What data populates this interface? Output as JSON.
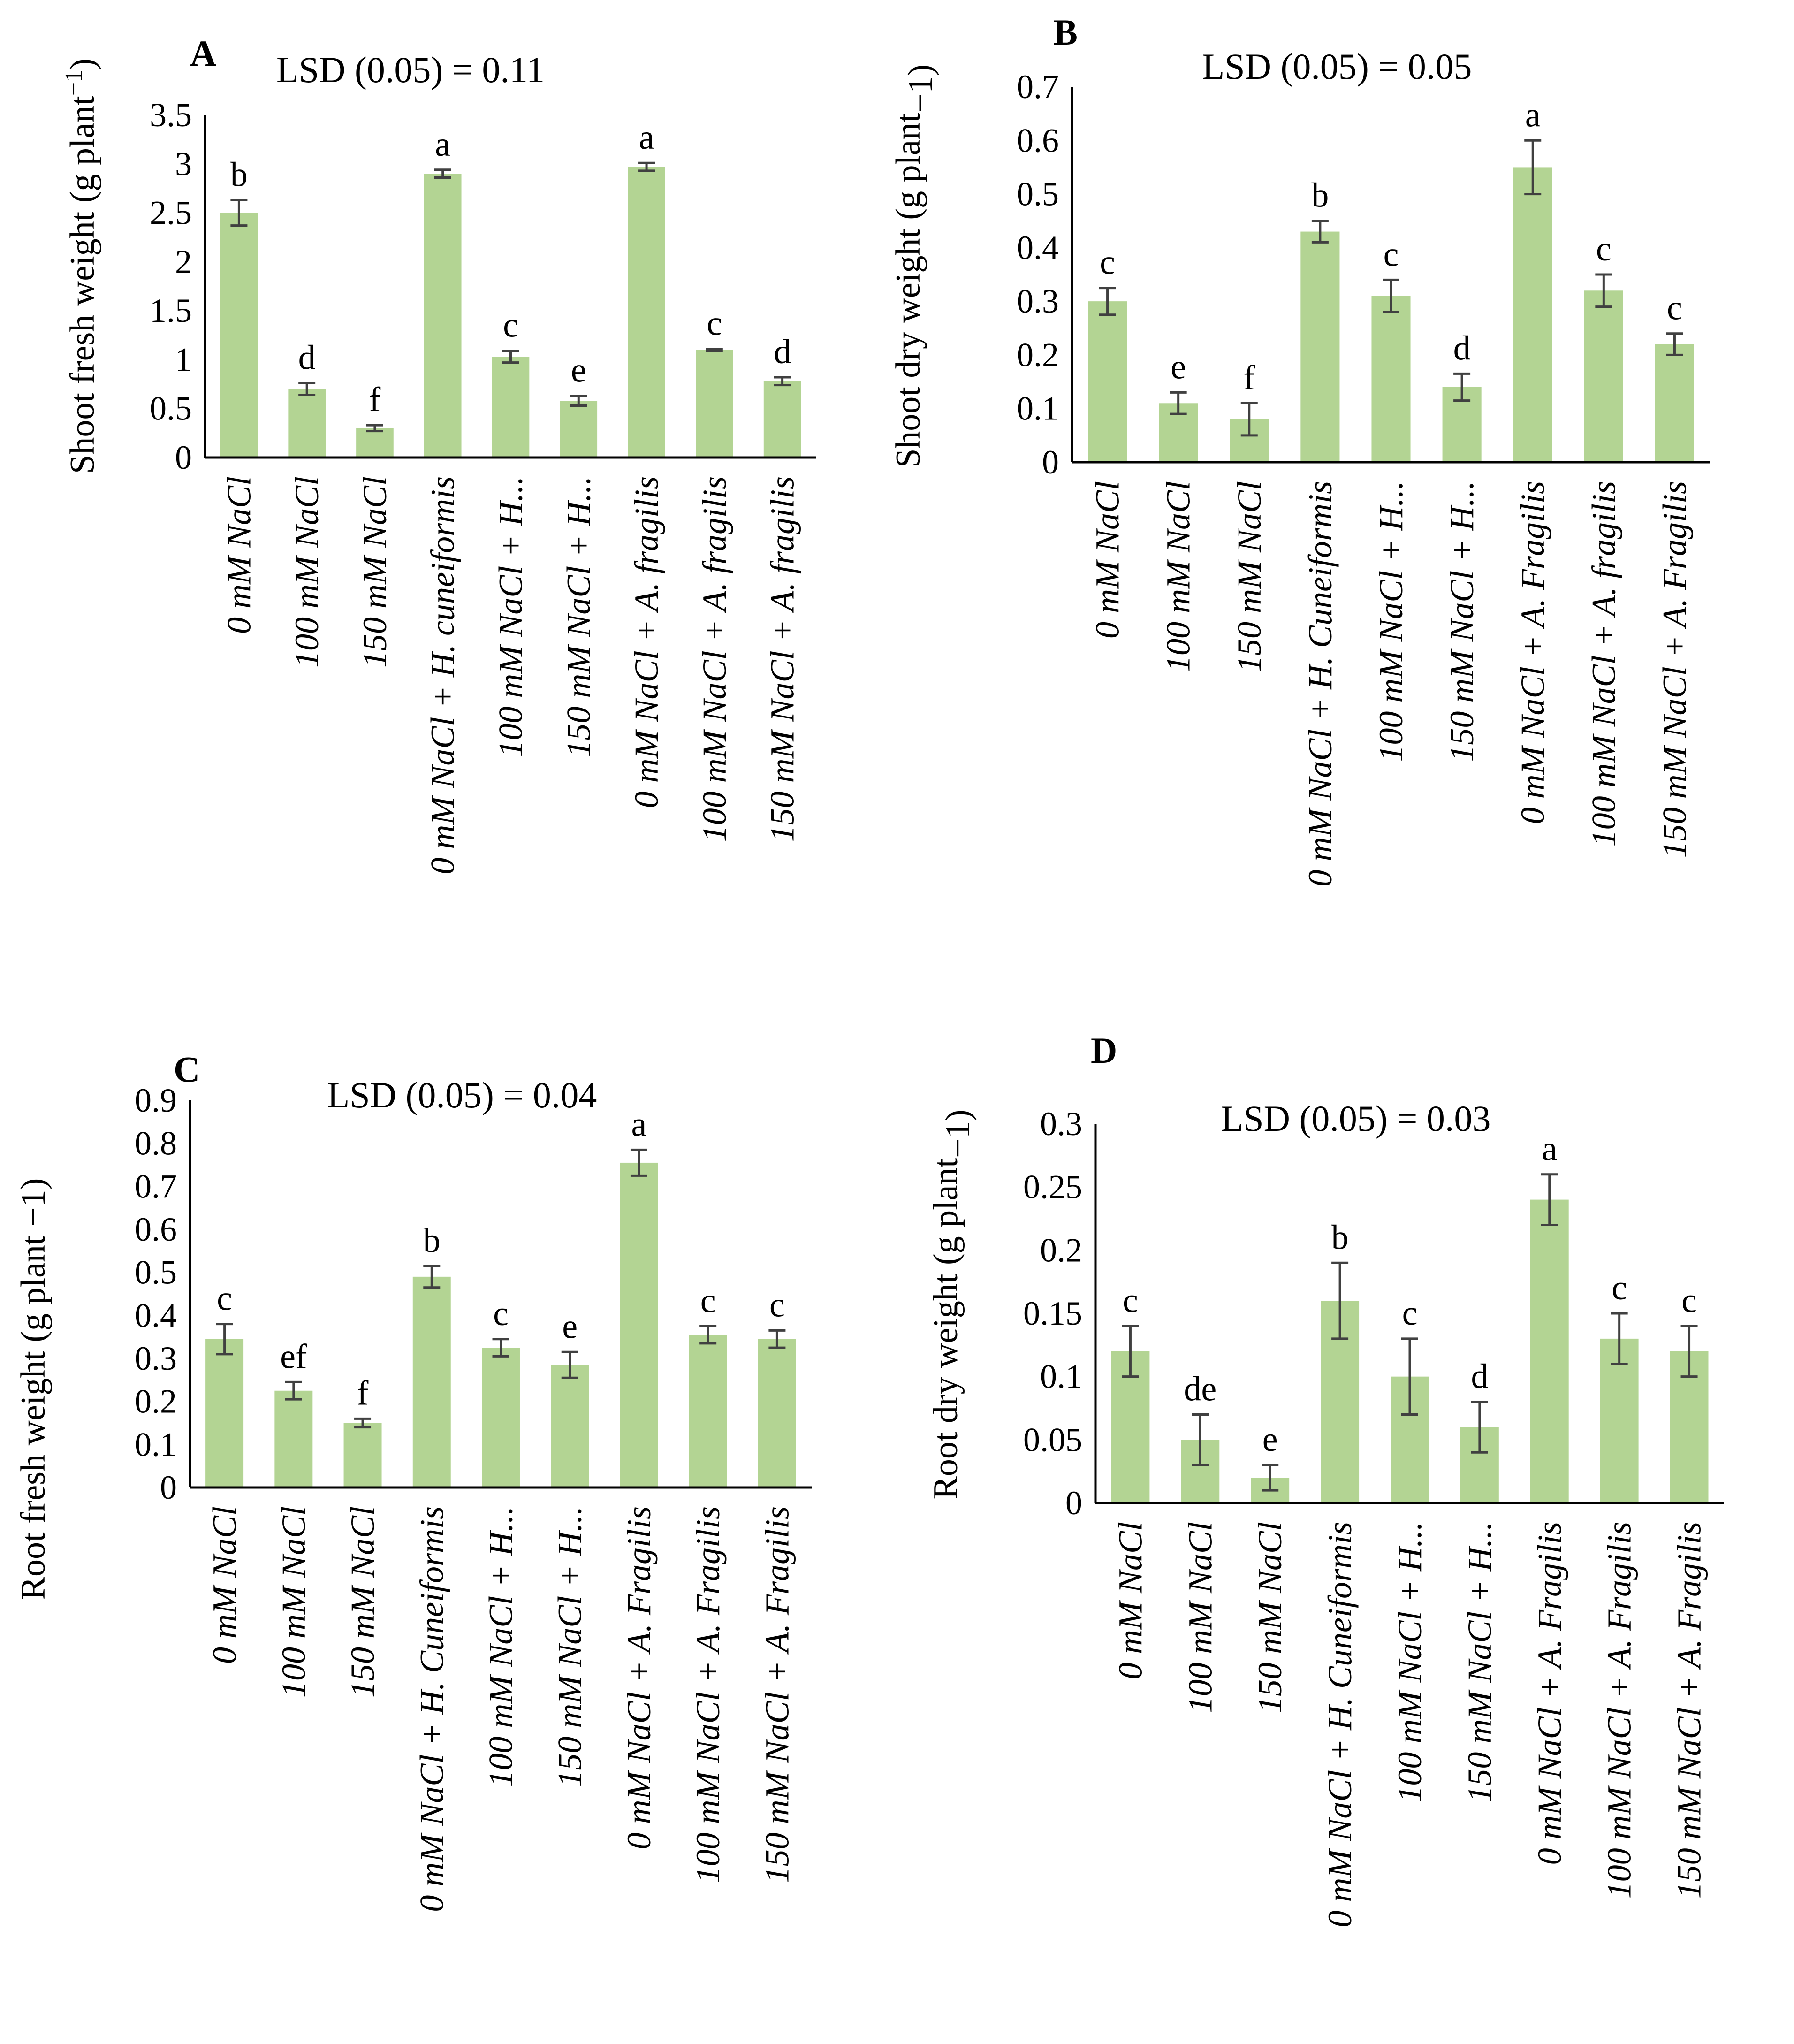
{
  "colors": {
    "bar": "#b3d493",
    "error_bar": "#404040",
    "axis": "#000000"
  },
  "chart_data": [
    {
      "type": "bar",
      "panel": "A",
      "title": "LSD (0.05) = 0.11",
      "ylabel": "Shoot fresh weight (g plant",
      "ylabel_sup": "−1",
      "ylabel_end": ")",
      "ylim": [
        0,
        3.5
      ],
      "yticks": [
        "0",
        "0.5",
        "1",
        "1.5",
        "2",
        "2.5",
        "3",
        "3.5"
      ],
      "categories": [
        "0 mM NaCl",
        "100 mM NaCl",
        "150 mM NaCl",
        "0 mM NaCl + H. cuneiformis",
        "100 mM NaCl + H...",
        "150 mM NaCl + H...",
        "0 mM NaCl + A. fragilis",
        "100 mM NaCl + A. fragilis",
        "150 mM NaCl + A. fragilis"
      ],
      "values": [
        2.5,
        0.7,
        0.3,
        2.9,
        1.03,
        0.58,
        2.97,
        1.1,
        0.78
      ],
      "errors": [
        0.13,
        0.06,
        0.03,
        0.04,
        0.06,
        0.05,
        0.04,
        0.01,
        0.04
      ],
      "letters": [
        "b",
        "d",
        "f",
        "a",
        "c",
        "e",
        "a",
        "c",
        "d"
      ]
    },
    {
      "type": "bar",
      "panel": "B",
      "title": "LSD (0.05) = 0.05",
      "ylabel": "Shoot  dry weight (g plant",
      "ylabel_sup": "",
      "ylabel_end": "−1)",
      "ylim": [
        0,
        0.7
      ],
      "yticks": [
        "0",
        "0.1",
        "0.2",
        "0.3",
        "0.4",
        "0.5",
        "0.6",
        "0.7"
      ],
      "categories": [
        "0 mM NaCl",
        "100 mM NaCl",
        "150 mM NaCl",
        "0 mM NaCl + H. Cuneiformis",
        "100 mM NaCl + H...",
        "150 mM NaCl + H...",
        "0 mM NaCl + A. Fragilis",
        "100 mM NaCl + A. fragilis",
        "150 mM NaCl + A. Fragilis"
      ],
      "values": [
        0.3,
        0.11,
        0.08,
        0.43,
        0.31,
        0.14,
        0.55,
        0.32,
        0.22
      ],
      "errors": [
        0.025,
        0.02,
        0.03,
        0.02,
        0.03,
        0.025,
        0.05,
        0.03,
        0.02
      ],
      "letters": [
        "c",
        "e",
        "f",
        "b",
        "c",
        "d",
        "a",
        "c",
        "c"
      ]
    },
    {
      "type": "bar",
      "panel": "C",
      "title": "LSD (0.05) = 0.04",
      "ylabel": "Root fresh weight (g plant −1)",
      "ylabel_sup": "",
      "ylabel_end": "",
      "ylim": [
        0,
        0.9
      ],
      "yticks": [
        "0",
        "0.1",
        "0.2",
        "0.3",
        "0.4",
        "0.5",
        "0.6",
        "0.7",
        "0.8",
        "0.9"
      ],
      "categories": [
        "0 mM NaCl",
        "100 mM NaCl",
        "150 mM NaCl",
        "0 mM NaCl + H. Cuneiformis",
        "100 mM NaCl + H...",
        "150 mM NaCl + H...",
        "0 mM NaCl + A. Fragilis",
        "100 mM NaCl + A. Fragilis",
        "150 mM NaCl + A. Fragilis"
      ],
      "values": [
        0.345,
        0.225,
        0.15,
        0.49,
        0.325,
        0.285,
        0.755,
        0.355,
        0.345
      ],
      "errors": [
        0.035,
        0.02,
        0.01,
        0.025,
        0.02,
        0.03,
        0.03,
        0.02,
        0.02
      ],
      "letters": [
        "c",
        "ef",
        "f",
        "b",
        "c",
        "e",
        "a",
        "c",
        "c"
      ]
    },
    {
      "type": "bar",
      "panel": "D",
      "title": "LSD (0.05) = 0.03",
      "ylabel": "Root dry weight (g plant",
      "ylabel_sup": "",
      "ylabel_end": "−1)",
      "ylim": [
        0,
        0.3
      ],
      "yticks": [
        "0",
        "0.05",
        "0.1",
        "0.15",
        "0.2",
        "0.25",
        "0.3"
      ],
      "categories": [
        "0 mM NaCl",
        "100 mM NaCl",
        "150 mM NaCl",
        "0 mM NaCl + H. Cuneiformis",
        "100 mM NaCl + H...",
        "150 mM NaCl + H...",
        "0 mM NaCl + A. Fragilis",
        "100 mM NaCl + A. Fragilis",
        "150 mM NaCl + A. Fragilis"
      ],
      "values": [
        0.12,
        0.05,
        0.02,
        0.16,
        0.1,
        0.06,
        0.24,
        0.13,
        0.12
      ],
      "errors": [
        0.02,
        0.02,
        0.01,
        0.03,
        0.03,
        0.02,
        0.02,
        0.02,
        0.02
      ],
      "letters": [
        "c",
        "de",
        "e",
        "b",
        "c",
        "d",
        "a",
        "c",
        "c"
      ]
    }
  ]
}
